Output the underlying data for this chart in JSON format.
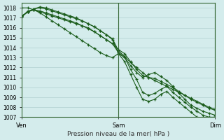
{
  "title": "Pression niveau de la mer( hPa )",
  "ylim": [
    1007,
    1018.5
  ],
  "yticks": [
    1007,
    1008,
    1009,
    1010,
    1011,
    1012,
    1013,
    1014,
    1015,
    1016,
    1017,
    1018
  ],
  "xtick_labels": [
    "Ven",
    "Sam",
    "Dim"
  ],
  "xtick_positions": [
    0,
    48,
    96
  ],
  "xlim": [
    0,
    96
  ],
  "bg_color": "#d4ecec",
  "grid_color": "#b0d0d0",
  "line_color": "#1a5c1a",
  "figsize": [
    3.2,
    2.0
  ],
  "dpi": 100,
  "lines": [
    {
      "x": [
        0,
        3,
        6,
        9,
        12,
        15,
        18,
        21,
        24,
        27,
        30,
        33,
        36,
        39,
        42,
        45,
        48,
        51,
        54,
        57,
        60,
        63,
        66,
        69,
        72,
        75,
        78,
        81,
        84,
        87,
        90,
        93,
        96
      ],
      "y": [
        1017.1,
        1017.7,
        1017.8,
        1017.5,
        1017.1,
        1016.7,
        1016.3,
        1015.9,
        1015.5,
        1015.1,
        1014.7,
        1014.3,
        1013.9,
        1013.5,
        1013.2,
        1013.0,
        1013.4,
        1013.0,
        1012.2,
        1011.5,
        1011.0,
        1011.3,
        1011.5,
        1011.1,
        1010.7,
        1010.1,
        1009.4,
        1008.8,
        1008.2,
        1007.9,
        1007.6,
        1007.4,
        1007.2
      ]
    },
    {
      "x": [
        0,
        3,
        6,
        9,
        12,
        15,
        18,
        21,
        24,
        27,
        30,
        33,
        36,
        39,
        42,
        45,
        48,
        51,
        54,
        57,
        60,
        63,
        66,
        69,
        72,
        75,
        78,
        81,
        84,
        87,
        90,
        93,
        96
      ],
      "y": [
        1018.0,
        1018.0,
        1017.8,
        1017.6,
        1017.4,
        1017.2,
        1017.0,
        1016.8,
        1016.6,
        1016.4,
        1016.2,
        1016.0,
        1015.6,
        1015.2,
        1014.8,
        1014.4,
        1013.5,
        1013.1,
        1012.5,
        1012.0,
        1011.5,
        1011.0,
        1010.7,
        1010.4,
        1010.1,
        1009.8,
        1009.5,
        1009.2,
        1008.9,
        1008.6,
        1008.3,
        1008.0,
        1007.8
      ]
    },
    {
      "x": [
        0,
        3,
        6,
        9,
        12,
        15,
        18,
        21,
        24,
        27,
        30,
        33,
        36,
        39,
        42,
        45,
        48,
        51,
        54,
        57,
        60,
        63,
        66,
        69,
        72,
        75,
        78,
        81,
        84,
        87,
        90,
        93,
        96
      ],
      "y": [
        1017.2,
        1017.6,
        1017.8,
        1017.7,
        1017.5,
        1017.3,
        1017.1,
        1016.9,
        1016.7,
        1016.5,
        1016.2,
        1015.9,
        1015.6,
        1015.2,
        1014.8,
        1014.4,
        1013.8,
        1013.4,
        1012.6,
        1011.8,
        1011.2,
        1011.0,
        1010.9,
        1010.6,
        1010.3,
        1010.0,
        1009.6,
        1009.2,
        1008.8,
        1008.5,
        1008.2,
        1007.9,
        1007.7
      ]
    },
    {
      "x": [
        0,
        3,
        6,
        9,
        12,
        15,
        18,
        21,
        24,
        27,
        30,
        33,
        36,
        39,
        42,
        45,
        48,
        51,
        54,
        57,
        60,
        63,
        66,
        69,
        72,
        75,
        78,
        81,
        84,
        87,
        90,
        93,
        96
      ],
      "y": [
        1017.1,
        1017.6,
        1017.9,
        1018.0,
        1017.9,
        1017.7,
        1017.5,
        1017.3,
        1017.1,
        1016.9,
        1016.7,
        1016.4,
        1016.1,
        1015.7,
        1015.3,
        1014.9,
        1013.7,
        1013.1,
        1011.8,
        1010.8,
        1009.5,
        1009.2,
        1009.4,
        1009.8,
        1010.1,
        1009.5,
        1009.0,
        1008.5,
        1008.0,
        1007.6,
        1007.2,
        1007.0,
        1007.0
      ]
    },
    {
      "x": [
        0,
        3,
        6,
        9,
        12,
        15,
        18,
        21,
        24,
        27,
        30,
        33,
        36,
        39,
        42,
        45,
        48,
        51,
        54,
        57,
        60,
        63,
        66,
        69,
        72,
        75,
        78,
        81,
        84,
        87,
        90,
        93,
        96
      ],
      "y": [
        1017.2,
        1017.6,
        1017.9,
        1018.1,
        1018.0,
        1017.8,
        1017.6,
        1017.4,
        1017.2,
        1017.0,
        1016.7,
        1016.4,
        1016.1,
        1015.7,
        1015.3,
        1014.8,
        1013.4,
        1012.6,
        1011.3,
        1010.0,
        1008.8,
        1008.6,
        1008.8,
        1009.3,
        1009.6,
        1009.0,
        1008.5,
        1008.0,
        1007.5,
        1007.0,
        1006.8,
        1006.8,
        1007.0
      ]
    }
  ]
}
